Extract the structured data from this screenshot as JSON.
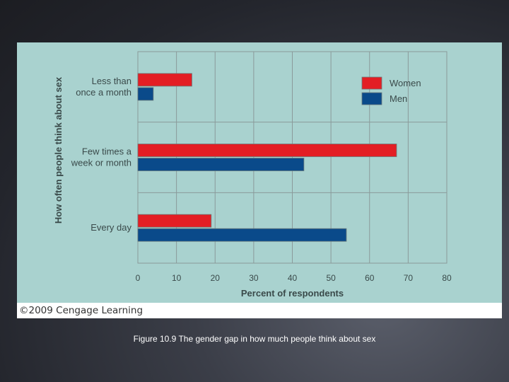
{
  "chart_data": {
    "type": "bar",
    "orientation": "horizontal",
    "categories": [
      "Less than once a month",
      "Few times a week or month",
      "Every day"
    ],
    "category_lines": [
      [
        "Less than",
        "once a month"
      ],
      [
        "Few times a",
        "week or month"
      ],
      [
        "Every day"
      ]
    ],
    "series": [
      {
        "name": "Women",
        "color": "#e31e24",
        "values": [
          14,
          67,
          19
        ]
      },
      {
        "name": "Men",
        "color": "#0a4a8a",
        "values": [
          4,
          43,
          54
        ]
      }
    ],
    "xlabel": "Percent of respondents",
    "ylabel": "How often people think about sex",
    "xlim": [
      0,
      80
    ],
    "xticks": [
      0,
      10,
      20,
      30,
      40,
      50,
      60,
      70,
      80
    ],
    "grid": true,
    "legend": "top-right"
  },
  "credit": "©2009 Cengage Learning",
  "caption": "Figure 10.9 The gender gap in how much people think about sex"
}
